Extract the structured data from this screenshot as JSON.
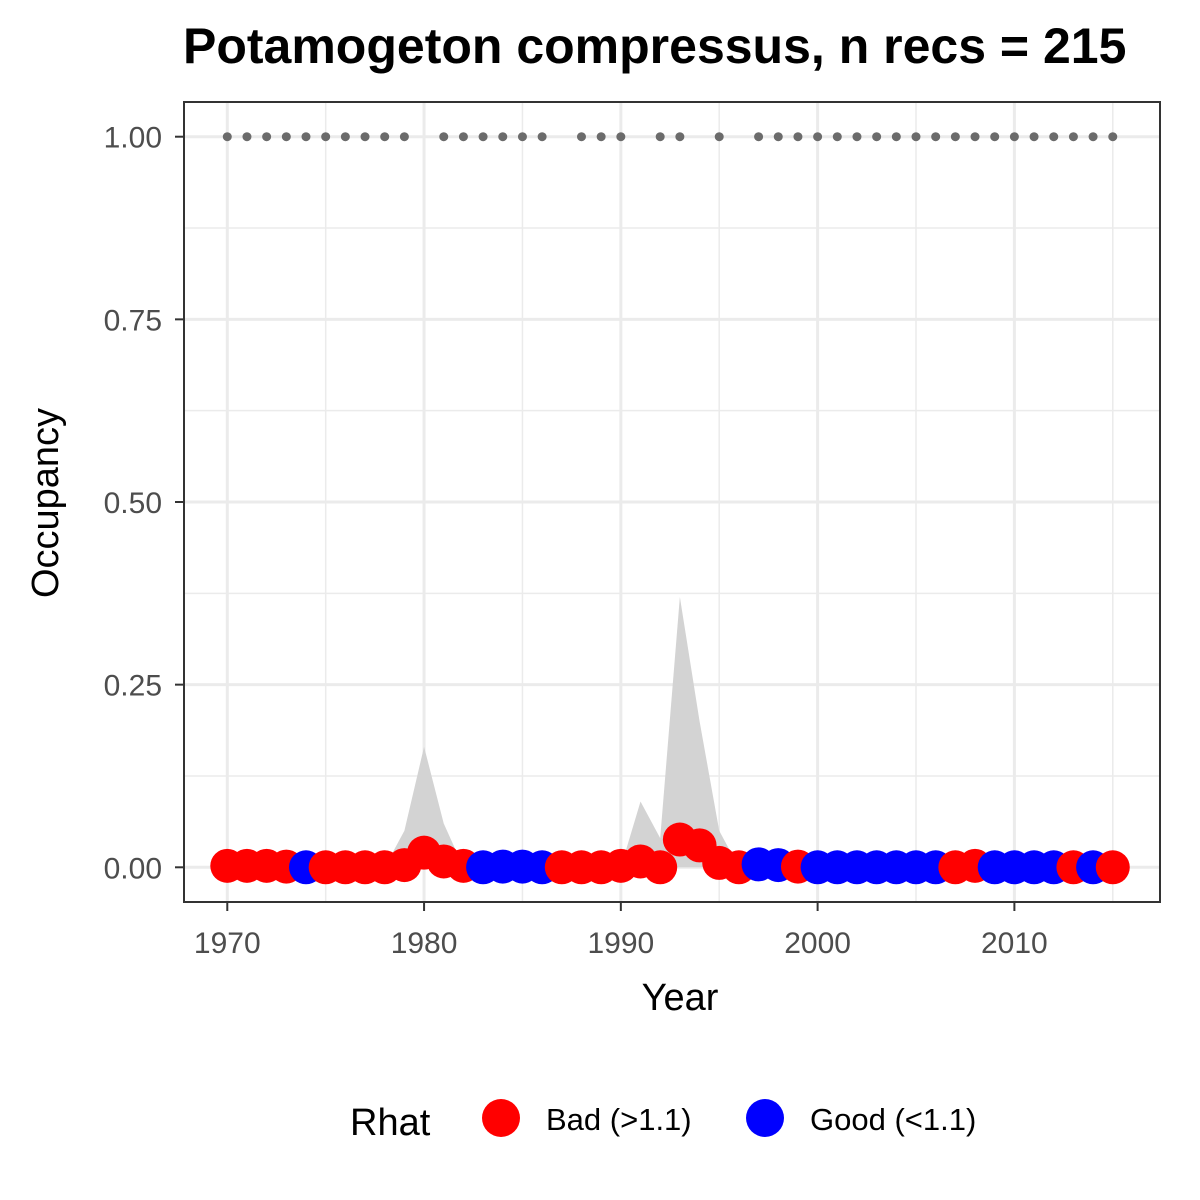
{
  "chart_data": {
    "type": "scatter",
    "title": "Potamogeton compressus, n recs = 215",
    "xlabel": "Year",
    "ylabel": "Occupancy",
    "xlim": [
      1967.8,
      2017.4
    ],
    "ylim": [
      -0.0475,
      1.0475
    ],
    "x_ticks": [
      1970,
      1980,
      1990,
      2000,
      2010
    ],
    "x_tick_labels": [
      "1970",
      "1980",
      "1990",
      "2000",
      "2010"
    ],
    "y_ticks": [
      0,
      0.25,
      0.5,
      0.75,
      1.0
    ],
    "y_tick_labels": [
      "0.00",
      "0.25",
      "0.50",
      "0.75",
      "1.00"
    ],
    "grid": true,
    "colors": {
      "bad": "#ff0000",
      "good": "#0000ff",
      "record_dots": "#6b6b6b",
      "ribbon": "#d3d3d3",
      "panel_border": "#333333",
      "grid": "#ebebeb"
    },
    "legend": {
      "title": "Rhat",
      "placement": "bottom",
      "entries": [
        {
          "key": "bad",
          "label": "Bad (>1.1)"
        },
        {
          "key": "good",
          "label": "Good (<1.1)"
        }
      ]
    },
    "series": [
      {
        "x": [
          1970,
          1971,
          1972,
          1973,
          1974,
          1975,
          1976,
          1977,
          1978,
          1979,
          1980,
          1981,
          1982,
          1983,
          1984,
          1985,
          1986,
          1987,
          1988,
          1989,
          1990,
          1991,
          1992,
          1993,
          1994,
          1995,
          1996,
          1997,
          1998,
          1999,
          2000,
          2001,
          2002,
          2003,
          2004,
          2005,
          2006,
          2007,
          2008,
          2009,
          2010,
          2011,
          2012,
          2013,
          2014,
          2015
        ],
        "y": [
          0.002,
          0.002,
          0.002,
          0.001,
          0.0,
          0.0,
          0.0,
          0.0,
          0.0,
          0.003,
          0.02,
          0.008,
          0.002,
          0.0,
          0.001,
          0.001,
          0.0,
          0.0,
          0.0,
          0.0,
          0.002,
          0.008,
          0.0,
          0.038,
          0.03,
          0.006,
          0.0,
          0.004,
          0.003,
          0.001,
          0.0,
          0.0,
          0.0,
          0.0,
          0.0,
          0.0,
          0.0,
          0.0,
          0.002,
          0.0,
          0.0,
          0.0,
          0.0,
          0.0,
          0.0,
          0.0
        ],
        "upper": [
          0.0,
          0.0,
          0.0,
          0.0,
          0.0,
          0.0,
          0.0,
          0.0,
          0.0,
          0.05,
          0.165,
          0.06,
          0.0,
          0.0,
          0.0,
          0.0,
          0.0,
          0.0,
          0.0,
          0.0,
          0.0,
          0.09,
          0.04,
          0.37,
          0.2,
          0.05,
          0.0,
          0.0,
          0.0,
          0.0,
          0.0,
          0.0,
          0.0,
          0.0,
          0.0,
          0.0,
          0.0,
          0.0,
          0.0,
          0.0,
          0.0,
          0.0,
          0.0,
          0.0,
          0.0,
          0.0
        ],
        "rhat": [
          "bad",
          "bad",
          "bad",
          "bad",
          "good",
          "bad",
          "bad",
          "bad",
          "bad",
          "bad",
          "bad",
          "bad",
          "bad",
          "good",
          "good",
          "good",
          "good",
          "bad",
          "bad",
          "bad",
          "bad",
          "bad",
          "bad",
          "bad",
          "bad",
          "bad",
          "bad",
          "good",
          "good",
          "bad",
          "good",
          "good",
          "good",
          "good",
          "good",
          "good",
          "good",
          "bad",
          "bad",
          "good",
          "good",
          "good",
          "good",
          "bad",
          "good",
          "bad"
        ]
      }
    ],
    "record_years": [
      1970,
      1971,
      1972,
      1973,
      1974,
      1975,
      1976,
      1977,
      1978,
      1979,
      1981,
      1982,
      1983,
      1984,
      1985,
      1986,
      1988,
      1989,
      1990,
      1992,
      1993,
      1995,
      1997,
      1998,
      1999,
      2000,
      2001,
      2002,
      2003,
      2004,
      2005,
      2006,
      2007,
      2008,
      2009,
      2010,
      2011,
      2012,
      2013,
      2014,
      2015
    ],
    "record_value": 1.0
  }
}
